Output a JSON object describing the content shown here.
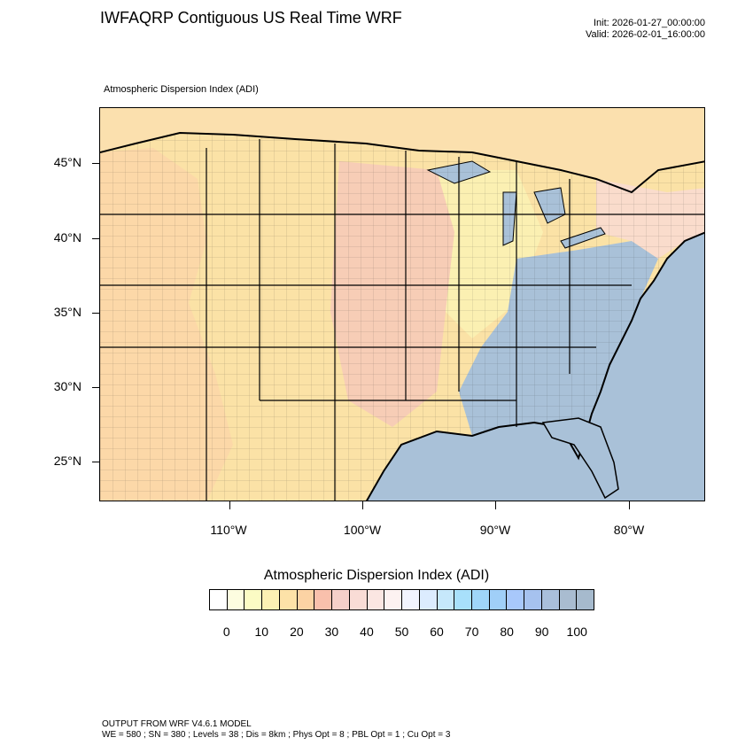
{
  "header": {
    "title": "IWFAQRP Contiguous US Real Time WRF",
    "init": "Init: 2026-01-27_00:00:00",
    "valid": "Valid: 2026-02-01_16:00:00"
  },
  "map": {
    "subtitle": "Atmospheric Dispersion Index   (ADI)",
    "lat_labels": [
      "45°N",
      "40°N",
      "35°N",
      "30°N",
      "25°N"
    ],
    "lon_labels": [
      "110°W",
      "100°W",
      "90°W",
      "80°W"
    ],
    "colors": {
      "ocean": "#a9c1d8",
      "land_low": "#fbe4a8",
      "land_mid": "#f6cdb8",
      "land_high": "#a9c1d8"
    }
  },
  "colorbar": {
    "title": "Atmospheric Dispersion Index  (ADI)",
    "labels": [
      "0",
      "10",
      "20",
      "30",
      "40",
      "50",
      "60",
      "70",
      "80",
      "90",
      "100"
    ],
    "colors": [
      "#ffffff",
      "#fdfde0",
      "#fbfbc4",
      "#fcf0b4",
      "#fde2a8",
      "#fcd3a4",
      "#f9c0ac",
      "#f5cfc9",
      "#f9dcd6",
      "#fbe6e2",
      "#fdf2f1",
      "#f1f4ff",
      "#dcecfe",
      "#c6e8fb",
      "#a8e0fb",
      "#9fd6f8",
      "#a0cff8",
      "#a8c8fb",
      "#a6c2ef",
      "#a9bfdb",
      "#a9bcd0",
      "#a6bacd"
    ]
  },
  "footer": {
    "line1": "OUTPUT FROM WRF V4.6.1 MODEL",
    "line2": "WE = 580 ; SN = 380 ; Levels = 38 ; Dis = 8km ; Phys Opt = 8 ; PBL Opt = 1 ; Cu Opt = 3"
  }
}
